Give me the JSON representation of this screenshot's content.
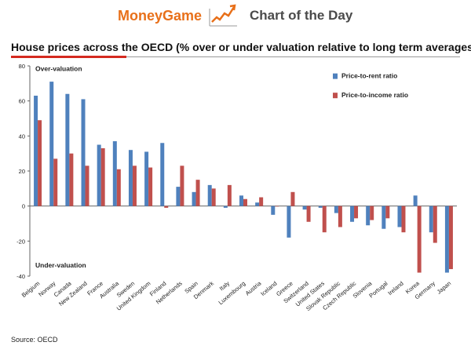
{
  "banner": {
    "brand": "MoneyGame",
    "caption": "Chart of the Day",
    "icon": "rising-chart-icon"
  },
  "source": "Source: OECD",
  "colors": {
    "price_to_rent": "#4f81bd",
    "price_to_income": "#c0504d",
    "accent": "#d42a1f",
    "brand": "#e8701a"
  },
  "chart_data": {
    "type": "bar",
    "title": "House prices across the OECD (% over or under valuation relative to long term averages)",
    "xlabel": "",
    "ylabel": "",
    "ylim": [
      -40,
      80
    ],
    "yticks": [
      -40,
      -20,
      0,
      20,
      40,
      60,
      80
    ],
    "legend_position": "top-right",
    "annotations": [
      "Over-valuation",
      "Under-valuation"
    ],
    "categories": [
      "Belgium",
      "Norway",
      "Canada",
      "New Zealand",
      "France",
      "Australia",
      "Sweden",
      "United Kingdom",
      "Finland",
      "Netherlands",
      "Spain",
      "Denmark",
      "Italy",
      "Luxembourg",
      "Austria",
      "Iceland",
      "Greece",
      "Switzerland",
      "United States",
      "Slovak Republic",
      "Czech Republic",
      "Slovenia",
      "Portugal",
      "Ireland",
      "Korea",
      "Germany",
      "Japan"
    ],
    "series": [
      {
        "name": "Price-to-rent ratio",
        "values": [
          63,
          71,
          64,
          61,
          35,
          37,
          32,
          31,
          36,
          11,
          8,
          12,
          -1,
          6,
          2,
          -5,
          -18,
          -2,
          -1,
          -4,
          -9,
          -11,
          -13,
          -12,
          6,
          -15,
          -38
        ]
      },
      {
        "name": "Price-to-income ratio",
        "values": [
          49,
          27,
          30,
          23,
          33,
          21,
          23,
          22,
          -1,
          23,
          15,
          10,
          12,
          4,
          5,
          0,
          8,
          -9,
          -15,
          -12,
          -7,
          -8,
          -7,
          -15,
          -38,
          -21,
          -36
        ]
      }
    ]
  }
}
